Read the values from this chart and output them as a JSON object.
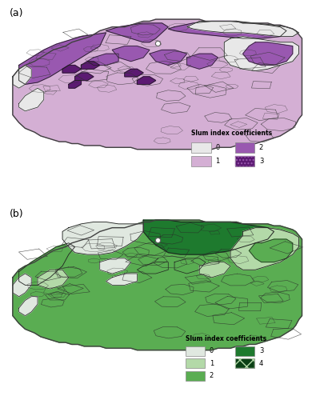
{
  "title_a": "(a)",
  "title_b": "(b)",
  "legend_title_a": "Slum index coefficients",
  "legend_title_b": "Slum index coefficients",
  "bg_color": "#ffffff",
  "colors_a": {
    "0": "#e8e8e8",
    "1": "#d4afd4",
    "2": "#9958b0",
    "3": "#5c1a72"
  },
  "colors_b": {
    "0": "#e0e8e0",
    "1": "#b3d9a8",
    "2": "#5aad52",
    "3": "#1e7a2e",
    "4": "#0a4015"
  },
  "map_outline_color": "#404040",
  "region_border_color": "#202020",
  "point_color": "#ffffff",
  "point_edge_color": "#606060"
}
